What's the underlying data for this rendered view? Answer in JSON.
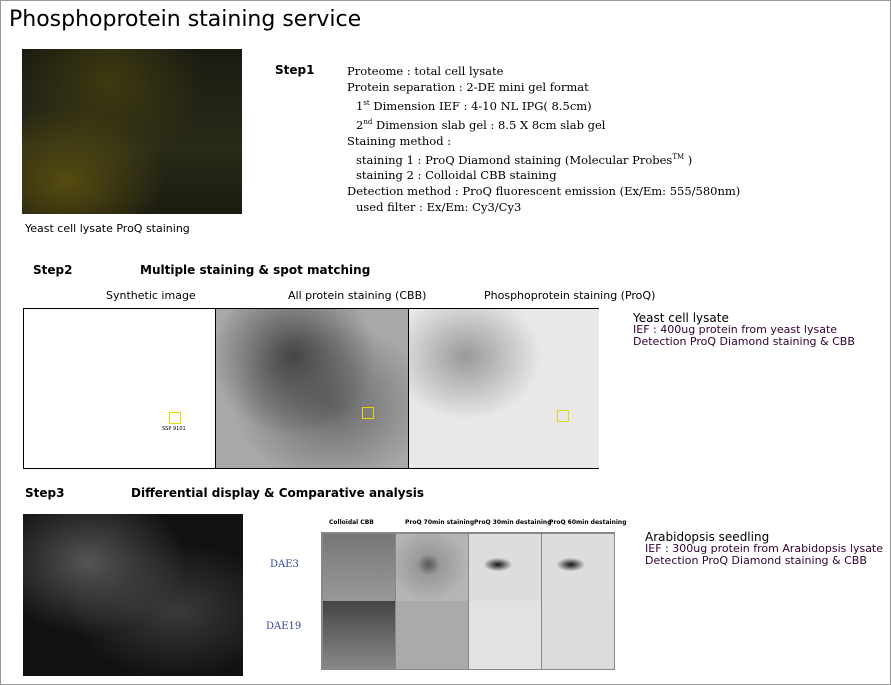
{
  "title": "Phosphoprotein staining service",
  "step1": {
    "label": "Step1",
    "image_caption": "Yeast cell lysate ProQ staining",
    "lines": [
      "Proteome  : total cell lysate",
      "Protein  separation  : 2-DE  mini gel format",
      "Dimension IEF : 4-10  NL IPG( 8.5cm)",
      "Dimension slab gel : 8.5  X 8cm slab gel",
      "Staining method :",
      "staining 1 : ProQ Diamond staining (Molecular Probes",
      "staining 2 : Colloidal CBB staining",
      "Detection method : ProQ fluorescent emission (Ex/Em: 555/580nm)",
      "used filter : Ex/Em: Cy3/Cy3"
    ],
    "sup_1st": "st",
    "prefix_1st": "1",
    "sup_2nd": "nd",
    "prefix_2nd": "2",
    "tm": "TM",
    "tm_close": " )"
  },
  "step2": {
    "label": "Step2",
    "heading": "Multiple staining & spot matching",
    "captions": [
      "Synthetic image",
      "All protein staining (CBB)",
      "Phosphoprotein staining (ProQ)"
    ],
    "spot_label": "SSP 9101",
    "info_title": "Yeast cell lysate",
    "info_lines": [
      "IEF : 400ug protein from yeast lysate",
      "Detection  ProQ Diamond staining & CBB"
    ],
    "highlight_color": "#e6d800"
  },
  "step3": {
    "label": "Step3",
    "heading": "Differential display & Comparative analysis",
    "columns": [
      "Colloidal CBB",
      "ProQ 70min staining",
      "ProQ 30min destaining",
      "ProQ 60min destaining"
    ],
    "rows": [
      "DAE3",
      "DAE19"
    ],
    "info_title": "Arabidopsis seedling",
    "info_lines": [
      "IEF : 300ug protein from Arabidopsis lysate",
      "Detection  ProQ Diamond staining & CBB"
    ]
  }
}
